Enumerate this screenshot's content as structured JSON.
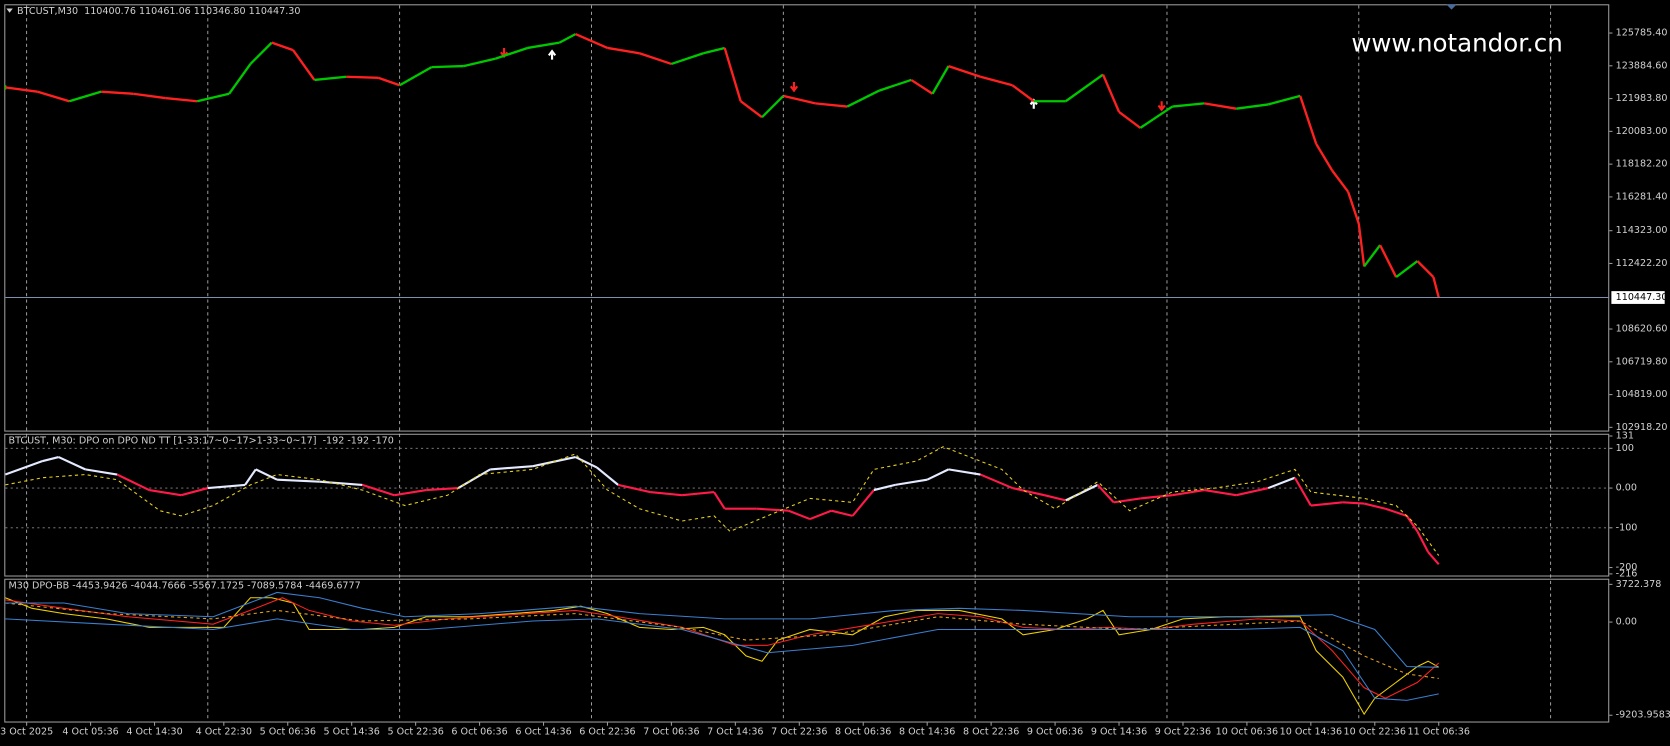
{
  "chart_data": [
    {
      "type": "candles",
      "title": "BTCUST,M30  110400.76 110461.06 110346.80 110447.30",
      "watermark": "www.notandor.cn",
      "x": [
        0,
        6,
        12,
        18,
        24,
        30,
        36,
        42,
        46,
        50,
        54,
        58,
        64,
        70,
        74,
        80,
        86,
        92,
        98,
        104,
        107,
        113,
        119,
        125,
        131,
        135,
        138,
        142,
        146,
        152,
        158,
        164,
        170,
        174,
        177,
        183,
        189,
        193,
        199,
        206,
        209,
        213,
        219,
        225,
        231,
        237,
        243,
        246,
        249,
        252,
        254,
        255,
        258,
        261,
        265,
        268,
        269
      ],
      "values": [
        122633,
        122386,
        121830,
        122386,
        122263,
        122016,
        121830,
        122263,
        123993,
        125229,
        124796,
        123066,
        123251,
        123190,
        122757,
        123808,
        123869,
        124302,
        124920,
        125229,
        125723,
        124920,
        124611,
        123993,
        124611,
        124920,
        121830,
        120903,
        122139,
        121706,
        121521,
        122448,
        123066,
        122263,
        123869,
        123251,
        122757,
        121830,
        121830,
        123375,
        121212,
        120285,
        121521,
        121706,
        121397,
        121645,
        122139,
        119358,
        117813,
        116577,
        114723,
        112251,
        113487,
        111633,
        112560,
        111633,
        110447.3
      ],
      "up_color": "#00c800",
      "down_color": "#ff2020",
      "xlim": [
        0,
        301
      ],
      "ylim": [
        102733,
        127392
      ],
      "yticks": [
        {
          "value": 125785.4,
          "label": "125785.40"
        },
        {
          "value": 123884.6,
          "label": "123884.60"
        },
        {
          "value": 121983.8,
          "label": "121983.80"
        },
        {
          "value": 120083,
          "label": "120083.00"
        },
        {
          "value": 118182.2,
          "label": "118182.20"
        },
        {
          "value": 116281.4,
          "label": "116281.40"
        },
        {
          "value": 114323,
          "label": "114323.00"
        },
        {
          "value": 112422.2,
          "label": "112422.20"
        },
        {
          "value": 108620.6,
          "label": "108620.60"
        },
        {
          "value": 106719.8,
          "label": "106719.80"
        },
        {
          "value": 104819,
          "label": "104819.00"
        },
        {
          "value": 102918.2,
          "label": "102918.20"
        }
      ],
      "current_price": {
        "value": 110447.3,
        "label": "110447.30"
      },
      "price_line_color": "#7f8fb0",
      "xgrid": [
        4,
        38,
        74,
        110,
        146,
        182,
        218,
        254,
        290
      ]
    },
    {
      "type": "line",
      "title": "BTCUST, M30: DPO on DPO ND TT [1-33:17~0~17>1-33~0~17]  -192 -192 -170",
      "xlim": [
        0,
        301
      ],
      "ylim": [
        -220,
        134
      ],
      "yticks": [
        131,
        100,
        {
          "value": 0,
          "label": "0.00"
        },
        -100,
        -200,
        -216
      ],
      "levels": [
        100,
        0,
        -100
      ],
      "series": [
        {
          "colors": {
            "above": "#e4eaff",
            "below": "#ff1a4a"
          },
          "x": [
            0,
            7,
            10,
            15,
            21,
            27,
            33,
            38,
            45,
            47,
            51,
            59,
            67,
            73,
            79,
            85,
            91,
            99,
            107,
            111,
            115,
            121,
            127,
            133,
            135,
            141,
            147,
            151,
            155,
            159,
            163,
            167,
            173,
            177,
            183,
            189,
            195,
            199,
            205,
            208,
            213,
            219,
            225,
            231,
            237,
            242,
            245,
            251,
            255,
            259,
            263,
            265,
            267,
            269
          ],
          "values": [
            34,
            68,
            78,
            47,
            34,
            -5,
            -18,
            0,
            8,
            47,
            21,
            16,
            8,
            -18,
            -5,
            0,
            47,
            55,
            78,
            52,
            8,
            -10,
            -18,
            -10,
            -52,
            -52,
            -57,
            -78,
            -57,
            -70,
            -5,
            8,
            21,
            47,
            34,
            0,
            -18,
            -31,
            8,
            -36,
            -26,
            -18,
            -5,
            -18,
            0,
            26,
            -44,
            -36,
            -39,
            -52,
            -70,
            -109,
            -161,
            -192
          ]
        },
        {
          "color": "#e6d21a",
          "style": "dashed",
          "x": [
            0,
            7,
            15,
            21,
            29,
            33,
            39,
            46,
            51,
            59,
            67,
            75,
            83,
            89,
            99,
            107,
            113,
            119,
            127,
            133,
            136,
            143,
            151,
            159,
            163,
            171,
            176,
            181,
            187,
            191,
            197,
            205,
            211,
            219,
            227,
            235,
            242,
            245,
            255,
            261,
            265,
            269
          ],
          "values": [
            8,
            26,
            34,
            21,
            -57,
            -70,
            -44,
            8,
            34,
            21,
            -5,
            -44,
            -18,
            34,
            47,
            86,
            -5,
            -52,
            -83,
            -70,
            -109,
            -70,
            -26,
            -36,
            47,
            68,
            104,
            78,
            47,
            -5,
            -52,
            16,
            -57,
            -10,
            0,
            16,
            47,
            -10,
            -26,
            -44,
            -96,
            -170
          ]
        }
      ]
    },
    {
      "type": "line",
      "title": "M30 DPO-BB -4453.9426 -4044.7666 -5567.1725 -7089.5784 -4469.6777",
      "xlim": [
        0,
        301
      ],
      "ylim": [
        -9820,
        4180
      ],
      "yticks": [
        {
          "value": 3722.378,
          "label": "3722.378"
        },
        {
          "value": 0,
          "label": "0.00"
        },
        {
          "value": -9203.9583,
          "label": "-9203.9583"
        }
      ],
      "series": [
        {
          "color": "#f0d000",
          "x": [
            0,
            5,
            11,
            19,
            27,
            35,
            41,
            46,
            50,
            54,
            57,
            61,
            67,
            73,
            79,
            87,
            95,
            103,
            108,
            113,
            119,
            125,
            131,
            135,
            139,
            142,
            145,
            151,
            159,
            165,
            171,
            179,
            187,
            191,
            197,
            203,
            206,
            209,
            215,
            221,
            229,
            237,
            243,
            246,
            251,
            255,
            257,
            261,
            265,
            267,
            269
          ],
          "values": [
            2404,
            1359,
            836,
            314,
            -523,
            -523,
            -523,
            2404,
            2404,
            1881,
            -732,
            -732,
            -732,
            -523,
            523,
            523,
            836,
            1150,
            1568,
            836,
            -523,
            -732,
            -523,
            -1254,
            -3344,
            -3867,
            -1777,
            -732,
            -1254,
            523,
            1150,
            1150,
            314,
            -1254,
            -732,
            314,
            1150,
            -1254,
            -732,
            314,
            523,
            523,
            523,
            -2822,
            -5434,
            -9092,
            -7524,
            -5957,
            -4389,
            -3867,
            -4453.9426
          ]
        },
        {
          "color": "#ff2020",
          "x": [
            0,
            11,
            23,
            39,
            47,
            52,
            57,
            65,
            73,
            83,
            95,
            107,
            115,
            127,
            137,
            143,
            151,
            163,
            175,
            183,
            191,
            199,
            207,
            215,
            223,
            235,
            243,
            249,
            255,
            259,
            265,
            269
          ],
          "values": [
            2195,
            1359,
            523,
            -209,
            1359,
            2404,
            1150,
            105,
            -314,
            314,
            732,
            1150,
            523,
            -523,
            -2299,
            -2299,
            -1254,
            -209,
            836,
            523,
            -523,
            -732,
            -523,
            -732,
            -209,
            314,
            105,
            -2822,
            -6479,
            -7524,
            -5957,
            -4044.7666
          ]
        },
        {
          "color": "#e0a020",
          "style": "dashed",
          "x": [
            0,
            19,
            39,
            51,
            67,
            87,
            107,
            127,
            139,
            155,
            175,
            191,
            211,
            231,
            243,
            255,
            263,
            269
          ],
          "values": [
            1881,
            836,
            314,
            1150,
            105,
            314,
            836,
            -523,
            -1777,
            -1254,
            523,
            -209,
            -732,
            -209,
            105,
            -3344,
            -5121,
            -5567.1725
          ]
        },
        {
          "color": "#3a7fd0",
          "x": [
            0,
            19,
            39,
            51,
            65,
            79,
            99,
            111,
            127,
            143,
            159,
            175,
            191,
            211,
            231,
            243,
            251,
            257,
            263,
            269
          ],
          "values": [
            314,
            -209,
            -732,
            314,
            -732,
            -732,
            105,
            314,
            -732,
            -3031,
            -2299,
            -732,
            -732,
            -732,
            -732,
            -523,
            -2822,
            -7524,
            -7733,
            -7089.5784
          ]
        },
        {
          "color": "#3a7fd0",
          "x": [
            0,
            11,
            23,
            39,
            51,
            59,
            67,
            75,
            89,
            107,
            119,
            135,
            151,
            167,
            179,
            191,
            211,
            231,
            249,
            257,
            263,
            269
          ],
          "values": [
            1881,
            1881,
            836,
            523,
            2926,
            2404,
            1359,
            523,
            836,
            1568,
            836,
            314,
            314,
            1150,
            1359,
            1150,
            523,
            523,
            732,
            -732,
            -4389,
            -4469.6777
          ]
        }
      ],
      "xticks": [
        {
          "value": 4,
          "label": "3 Oct 2025"
        },
        {
          "value": 16,
          "label": "4 Oct 05:36"
        },
        {
          "value": 28,
          "label": "4 Oct 14:30"
        },
        {
          "value": 41,
          "label": "4 Oct 22:30"
        },
        {
          "value": 53,
          "label": "5 Oct 06:36"
        },
        {
          "value": 65,
          "label": "5 Oct 14:36"
        },
        {
          "value": 77,
          "label": "5 Oct 22:36"
        },
        {
          "value": 89,
          "label": "6 Oct 06:36"
        },
        {
          "value": 101,
          "label": "6 Oct 14:36"
        },
        {
          "value": 113,
          "label": "6 Oct 22:36"
        },
        {
          "value": 125,
          "label": "7 Oct 06:36"
        },
        {
          "value": 137,
          "label": "7 Oct 14:36"
        },
        {
          "value": 149,
          "label": "7 Oct 22:36"
        },
        {
          "value": 161,
          "label": "8 Oct 06:36"
        },
        {
          "value": 173,
          "label": "8 Oct 14:36"
        },
        {
          "value": 185,
          "label": "8 Oct 22:36"
        },
        {
          "value": 197,
          "label": "9 Oct 06:36"
        },
        {
          "value": 209,
          "label": "9 Oct 14:36"
        },
        {
          "value": 221,
          "label": "9 Oct 22:36"
        },
        {
          "value": 233,
          "label": "10 Oct 06:36"
        },
        {
          "value": 245,
          "label": "10 Oct 14:36"
        },
        {
          "value": 257,
          "label": "10 Oct 22:36"
        },
        {
          "value": 269,
          "label": "11 Oct 06:36"
        }
      ]
    }
  ]
}
